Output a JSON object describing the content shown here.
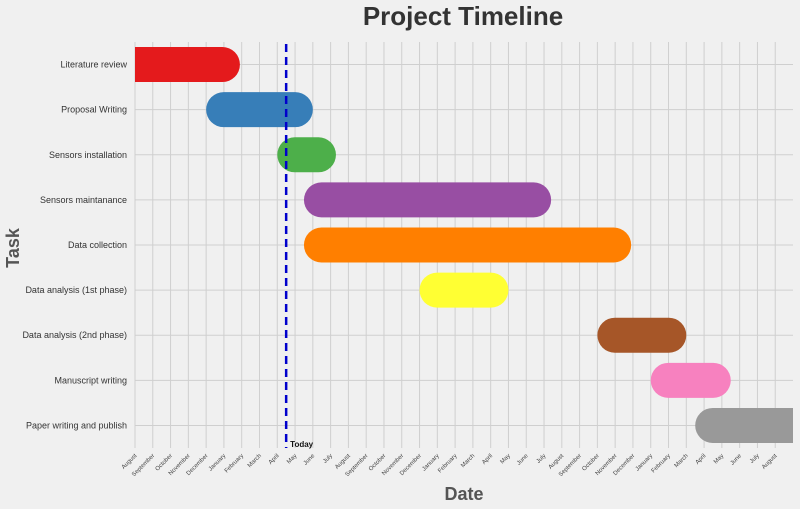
{
  "chart_data": {
    "type": "gantt",
    "title": "Project Timeline",
    "xlabel": "Date",
    "ylabel": "Task",
    "x_ticks": [
      "August",
      "September",
      "October",
      "November",
      "December",
      "January",
      "February",
      "March",
      "April",
      "May",
      "June",
      "July",
      "August",
      "September",
      "October",
      "November",
      "December",
      "January",
      "February",
      "March",
      "April",
      "May",
      "June",
      "July",
      "August",
      "September",
      "October",
      "November",
      "December",
      "January",
      "February",
      "March",
      "April",
      "May",
      "June",
      "July",
      "August"
    ],
    "tasks": [
      {
        "name": "Literature review",
        "start": 0,
        "end": 5.9,
        "color": "#e41a1c"
      },
      {
        "name": "Proposal Writing",
        "start": 4,
        "end": 10,
        "color": "#377eb8"
      },
      {
        "name": "Sensors installation",
        "start": 8,
        "end": 11.3,
        "color": "#4daf4a"
      },
      {
        "name": "Sensors maintanance",
        "start": 9.5,
        "end": 23.4,
        "color": "#984ea3"
      },
      {
        "name": "Data collection",
        "start": 9.5,
        "end": 27.9,
        "color": "#ff7f00"
      },
      {
        "name": "Data analysis (1st phase)",
        "start": 16,
        "end": 21,
        "color": "#ffff33"
      },
      {
        "name": "Data analysis (2nd phase)",
        "start": 26,
        "end": 31,
        "color": "#a65628"
      },
      {
        "name": "Manuscript writing",
        "start": 29,
        "end": 33.5,
        "color": "#f781bf"
      },
      {
        "name": "Paper writing and publish",
        "start": 31.5,
        "end": 37,
        "color": "#999999"
      }
    ],
    "today": {
      "label": "Today",
      "x": 8.5,
      "color": "#0000cc"
    },
    "xlim": [
      0,
      37
    ],
    "grid": true
  }
}
